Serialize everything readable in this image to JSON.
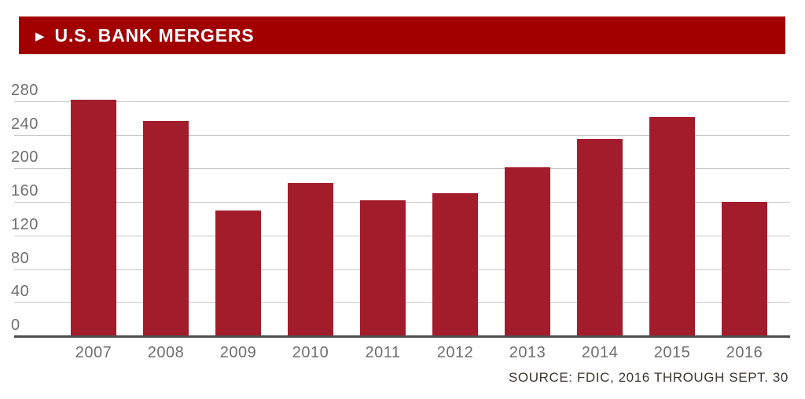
{
  "header": {
    "arrow_icon": "▶",
    "title": "U.S. BANK MERGERS",
    "bg_color": "#a20000",
    "text_color": "#ffffff"
  },
  "source": {
    "label": "SOURCE: FDIC, 2016 THROUGH SEPT. 30"
  },
  "chart_data": {
    "type": "bar",
    "title": "U.S. BANK MERGERS",
    "categories": [
      "2007",
      "2008",
      "2009",
      "2010",
      "2011",
      "2012",
      "2013",
      "2014",
      "2015",
      "2016"
    ],
    "values": [
      282,
      257,
      150,
      183,
      162,
      170,
      201,
      235,
      261,
      160
    ],
    "xlabel": "",
    "ylabel": "",
    "ylim": [
      0,
      280
    ],
    "yticks": [
      0,
      40,
      80,
      120,
      160,
      200,
      240,
      280
    ],
    "grid": true,
    "legend": "none",
    "bar_color": "#a31c2b",
    "gridline_color": "#c9c9c9",
    "axis_color": "#4d4d4d",
    "tick_label_color": "#6f6f6f"
  }
}
